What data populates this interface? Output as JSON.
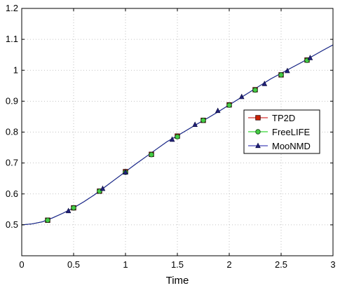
{
  "chart_data": {
    "type": "line",
    "title": "",
    "xlabel": "Time",
    "ylabel": "",
    "xlim": [
      0,
      3
    ],
    "ylim": [
      0.4,
      1.2
    ],
    "xticks": [
      0,
      0.5,
      1,
      1.5,
      2,
      2.5,
      3
    ],
    "xtick_labels": [
      "0",
      "0.5",
      "1",
      "1.5",
      "2",
      "2.5",
      "3"
    ],
    "yticks": [
      0.4,
      0.5,
      0.6,
      0.7,
      0.8,
      0.9,
      1.0,
      1.1,
      1.2
    ],
    "ytick_labels": [
      "",
      "0.5",
      "0.6",
      "0.7",
      "0.8",
      "0.9",
      "1",
      "1.1",
      "1.2"
    ],
    "grid": true,
    "legend_position": "right",
    "series": [
      {
        "name": "TP2D",
        "color": "#cc0000",
        "marker": "square",
        "marker_color": "#cc2200",
        "x": [
          0,
          0.1,
          0.2,
          0.3,
          0.4,
          0.5,
          0.6,
          0.7,
          0.8,
          0.9,
          1.0,
          1.1,
          1.2,
          1.3,
          1.4,
          1.5,
          1.6,
          1.7,
          1.8,
          1.9,
          2.0,
          2.1,
          2.2,
          2.3,
          2.4,
          2.5,
          2.6,
          2.7,
          2.8,
          2.9,
          3.0
        ],
        "y": [
          0.5,
          0.503,
          0.51,
          0.523,
          0.538,
          0.555,
          0.575,
          0.597,
          0.622,
          0.647,
          0.672,
          0.697,
          0.721,
          0.745,
          0.769,
          0.788,
          0.808,
          0.828,
          0.847,
          0.867,
          0.888,
          0.909,
          0.93,
          0.951,
          0.972,
          0.99,
          1.008,
          1.026,
          1.045,
          1.064,
          1.082
        ],
        "markers_x": [
          0.25,
          0.5,
          0.75,
          1.0,
          1.25,
          1.5,
          1.75,
          2.0,
          2.25,
          2.5,
          2.75
        ],
        "markers_y": [
          0.515,
          0.555,
          0.609,
          0.672,
          0.728,
          0.787,
          0.838,
          0.888,
          0.937,
          0.985,
          1.033
        ]
      },
      {
        "name": "FreeLIFE",
        "color": "#00cc00",
        "marker": "circle",
        "marker_color": "#44cc44",
        "x": [
          0,
          0.1,
          0.2,
          0.3,
          0.4,
          0.5,
          0.6,
          0.7,
          0.8,
          0.9,
          1.0,
          1.1,
          1.2,
          1.3,
          1.4,
          1.5,
          1.6,
          1.7,
          1.8,
          1.9,
          2.0,
          2.1,
          2.2,
          2.3,
          2.4,
          2.5,
          2.6,
          2.7,
          2.8,
          2.9,
          3.0
        ],
        "y": [
          0.5,
          0.503,
          0.51,
          0.523,
          0.538,
          0.555,
          0.575,
          0.597,
          0.622,
          0.647,
          0.672,
          0.697,
          0.721,
          0.745,
          0.769,
          0.788,
          0.808,
          0.828,
          0.847,
          0.867,
          0.888,
          0.909,
          0.93,
          0.951,
          0.972,
          0.99,
          1.008,
          1.026,
          1.045,
          1.064,
          1.082
        ],
        "markers_x": [
          0.25,
          0.5,
          0.75,
          1.0,
          1.25,
          1.5,
          1.75,
          2.0,
          2.25,
          2.5,
          2.75
        ],
        "markers_y": [
          0.515,
          0.555,
          0.609,
          0.67,
          0.727,
          0.785,
          0.838,
          0.887,
          0.936,
          0.985,
          1.032
        ]
      },
      {
        "name": "MooNMD",
        "color": "#1a1aaa",
        "marker": "triangle",
        "marker_color": "#22227a",
        "x": [
          0,
          0.1,
          0.2,
          0.3,
          0.4,
          0.5,
          0.6,
          0.7,
          0.8,
          0.9,
          1.0,
          1.1,
          1.2,
          1.3,
          1.4,
          1.5,
          1.6,
          1.7,
          1.8,
          1.9,
          2.0,
          2.1,
          2.2,
          2.3,
          2.4,
          2.5,
          2.6,
          2.7,
          2.8,
          2.9,
          3.0
        ],
        "y": [
          0.5,
          0.503,
          0.51,
          0.523,
          0.538,
          0.555,
          0.575,
          0.597,
          0.622,
          0.647,
          0.672,
          0.697,
          0.721,
          0.745,
          0.769,
          0.788,
          0.808,
          0.828,
          0.847,
          0.867,
          0.888,
          0.909,
          0.93,
          0.951,
          0.972,
          0.99,
          1.008,
          1.026,
          1.045,
          1.064,
          1.082
        ],
        "markers_x": [
          0.45,
          0.78,
          1.0,
          1.45,
          1.67,
          1.89,
          2.12,
          2.34,
          2.56,
          2.78
        ],
        "markers_y": [
          0.545,
          0.617,
          0.67,
          0.776,
          0.824,
          0.869,
          0.914,
          0.956,
          0.998,
          1.04
        ]
      }
    ]
  }
}
